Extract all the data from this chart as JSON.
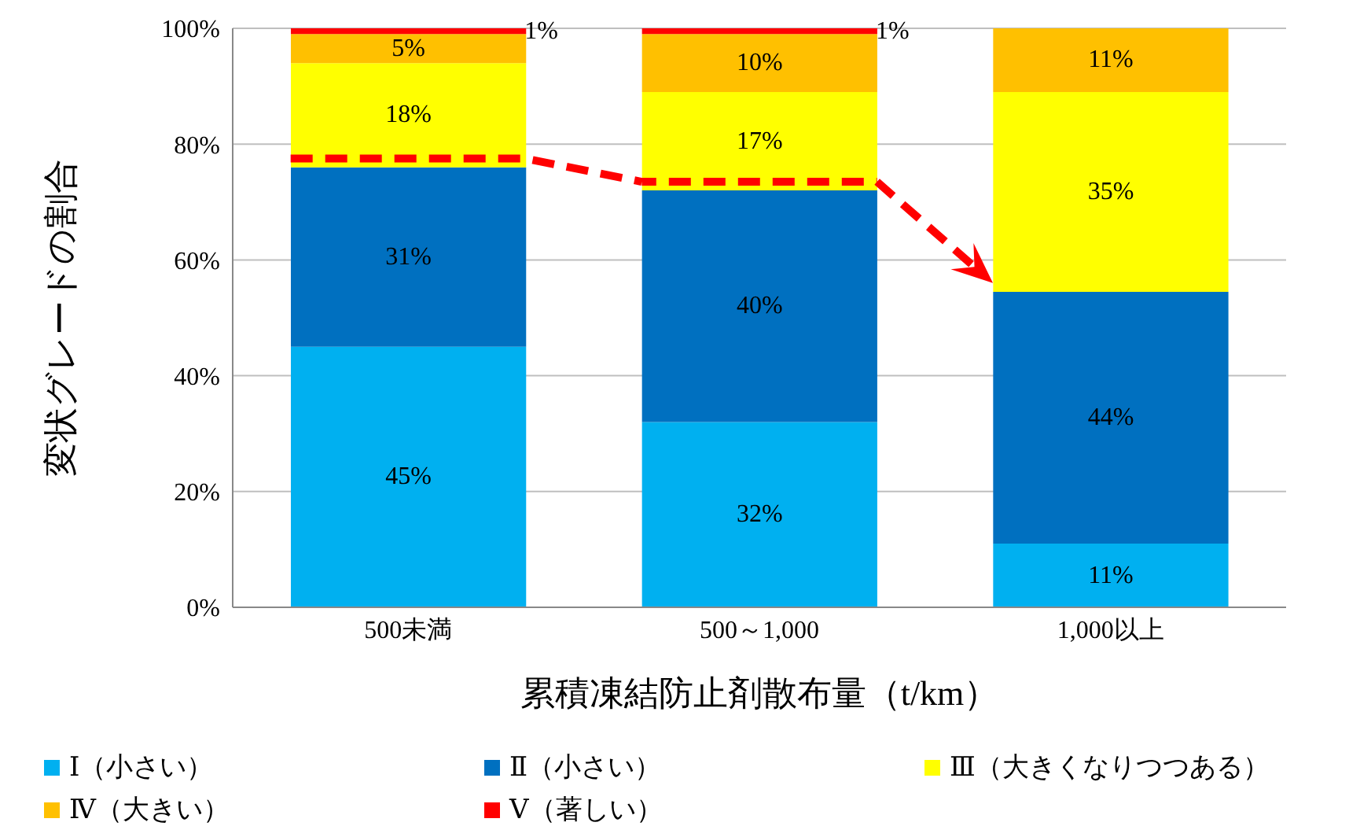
{
  "chart_data": {
    "type": "bar",
    "stacked": true,
    "xlabel": "累積凍結防止剤散布量（t/km）",
    "ylabel": "変状グレードの割合",
    "categories": [
      "500未満",
      "500～1,000",
      "1,000以上"
    ],
    "series": [
      {
        "name": "Ⅰ（小さい）",
        "color": "#00b0f0",
        "values": [
          45,
          32,
          11
        ],
        "value_labels": [
          "45%",
          "32%",
          "11%"
        ]
      },
      {
        "name": "Ⅱ（小さい）",
        "color": "#0070c0",
        "values": [
          31,
          40,
          43.5
        ],
        "value_labels": [
          "31%",
          "40%",
          "44%"
        ]
      },
      {
        "name": "Ⅲ（大きくなりつつある）",
        "color": "#ffff00",
        "values": [
          18,
          17,
          34.5
        ],
        "value_labels": [
          "18%",
          "17%",
          "35%"
        ]
      },
      {
        "name": "Ⅳ（大きい）",
        "color": "#ffc000",
        "values": [
          5,
          10,
          11
        ],
        "value_labels": [
          "5%",
          "10%",
          "11%"
        ]
      },
      {
        "name": "Ⅴ（著しい）",
        "color": "#ff0000",
        "values": [
          1,
          1,
          null
        ],
        "value_labels": [
          "1%",
          "1%",
          null
        ]
      }
    ],
    "ylim": [
      0,
      100
    ],
    "yticks": [
      {
        "value": 0,
        "label": "0%"
      },
      {
        "value": 20,
        "label": "20%"
      },
      {
        "value": 40,
        "label": "40%"
      },
      {
        "value": 60,
        "label": "60%"
      },
      {
        "value": 80,
        "label": "80%"
      },
      {
        "value": 100,
        "label": "100%"
      }
    ],
    "grid": "y",
    "legend": "bottom"
  }
}
